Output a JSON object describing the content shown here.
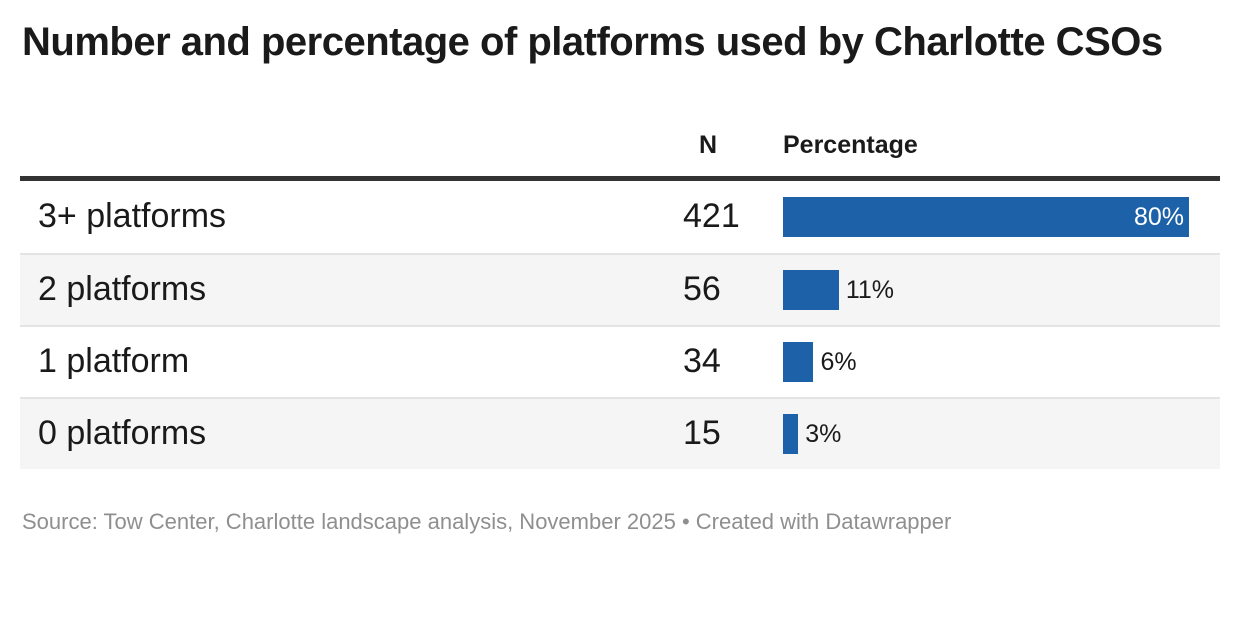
{
  "title": "Number and percentage of platforms used by Charlotte CSOs",
  "table": {
    "columns": {
      "n": "N",
      "percentage": "Percentage"
    },
    "rows": [
      {
        "label": "3+ platforms",
        "n": "421",
        "pct": 80,
        "pct_label": "80%"
      },
      {
        "label": "2 platforms",
        "n": "56",
        "pct": 11,
        "pct_label": "11%"
      },
      {
        "label": "1 platform",
        "n": "34",
        "pct": 6,
        "pct_label": "6%"
      },
      {
        "label": "0 platforms",
        "n": "15",
        "pct": 3,
        "pct_label": "3%"
      }
    ]
  },
  "footer": {
    "text": "Source: Tow Center, Charlotte landscape analysis, November 2025 • Created with Datawrapper"
  },
  "colors": {
    "bar_blue": "#1d62a8",
    "header_rule": "#333333",
    "row_alt_bg": "#f5f5f5",
    "row_separator": "#e4e4e4",
    "text_dark": "#1a1a1a",
    "footer_gray": "#8f8f8f",
    "bar_label_inside": "#ffffff"
  },
  "chart_data": {
    "type": "bar",
    "title": "Number and percentage of platforms used by Charlotte CSOs",
    "categories": [
      "3+ platforms",
      "2 platforms",
      "1 platform",
      "0 platforms"
    ],
    "series": [
      {
        "name": "N",
        "values": [
          421,
          56,
          34,
          15
        ]
      },
      {
        "name": "Percentage",
        "values": [
          80,
          11,
          6,
          3
        ]
      }
    ],
    "value_suffix": "%",
    "bar_scale_max": 80,
    "orientation": "horizontal",
    "grid": false,
    "legend_position": "none",
    "xlabel": "",
    "ylabel": ""
  }
}
